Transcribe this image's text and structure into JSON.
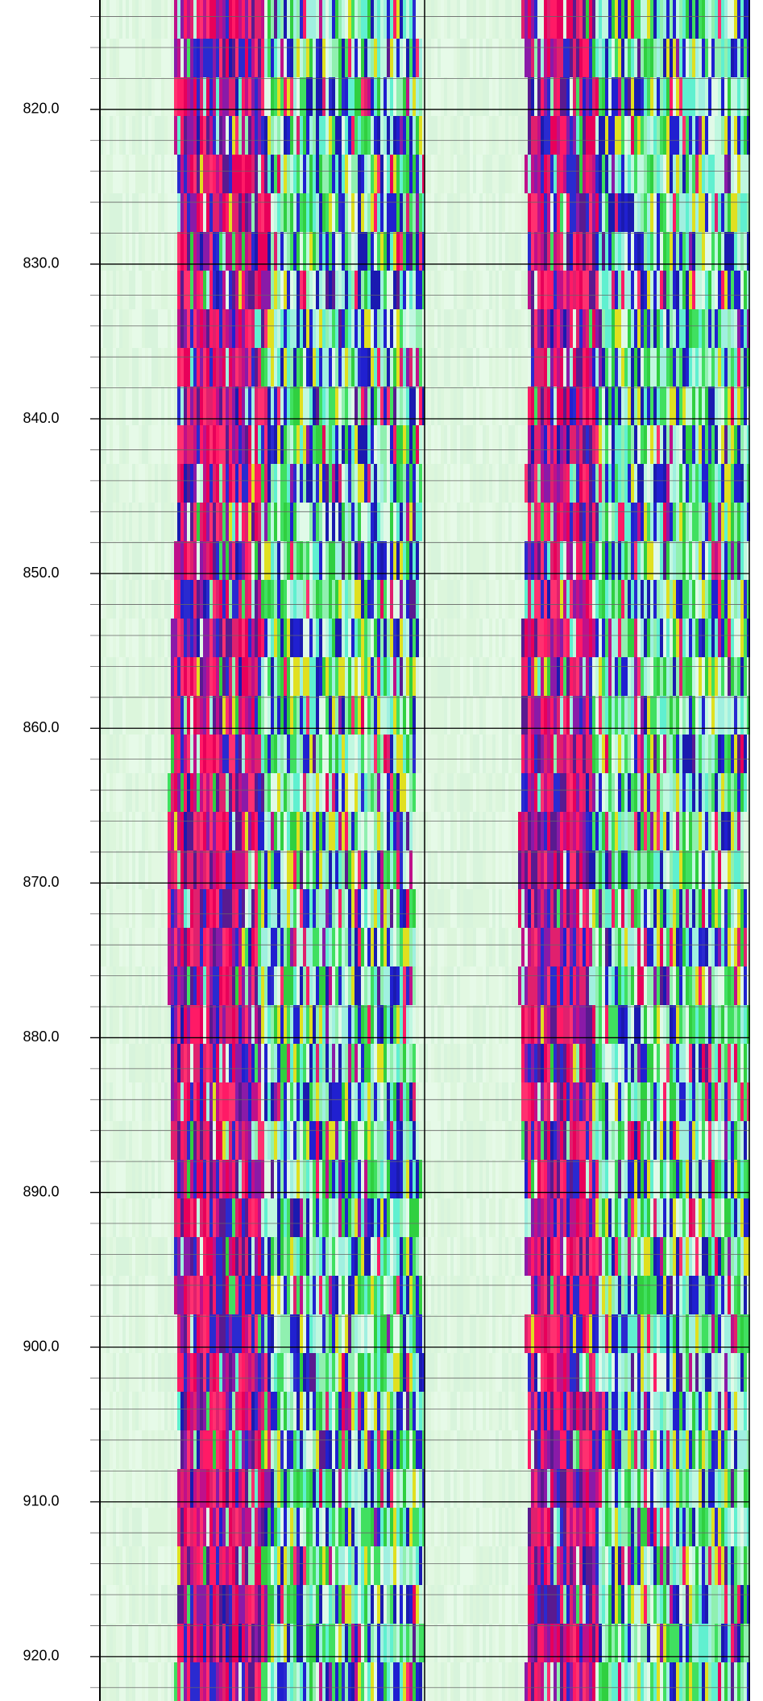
{
  "chart_data": {
    "type": "image-log",
    "ylim": [
      812.93,
      922.87
    ],
    "yticks": [
      {
        "value": 820,
        "label": "820.0"
      },
      {
        "value": 830,
        "label": "830.0"
      },
      {
        "value": 840,
        "label": "840.0"
      },
      {
        "value": 850,
        "label": "850.0"
      },
      {
        "value": 860,
        "label": "860.0"
      },
      {
        "value": 870,
        "label": "870.0"
      },
      {
        "value": 880,
        "label": "880.0"
      },
      {
        "value": 890,
        "label": "890.0"
      },
      {
        "value": 900,
        "label": "900.0"
      },
      {
        "value": 910,
        "label": "910.0"
      },
      {
        "value": 920,
        "label": "920.0"
      }
    ],
    "minor_yticks": [
      814,
      816,
      818,
      822,
      824,
      826,
      828,
      832,
      834,
      836,
      838,
      842,
      844,
      846,
      848,
      852,
      854,
      856,
      858,
      862,
      864,
      866,
      868,
      872,
      874,
      876,
      878,
      882,
      884,
      886,
      888,
      892,
      894,
      896,
      898,
      902,
      904,
      906,
      908,
      912,
      914,
      916,
      918,
      922
    ],
    "grid": true,
    "y_inverted": true
  }
}
